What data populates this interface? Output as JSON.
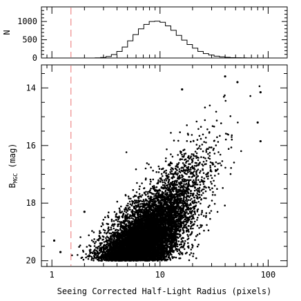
{
  "colors": {
    "cut_line": "#e88888",
    "points": "#000000",
    "frame": "#000000"
  },
  "chart_data": [
    {
      "id": "histogram",
      "type": "bar",
      "title": "",
      "xlabel": "",
      "ylabel": "N",
      "xscale": "log",
      "xlim": [
        0.8,
        150
      ],
      "ylim": [
        0,
        1400
      ],
      "yticks": [
        0,
        500,
        1000
      ],
      "ytick_labels": [
        "0",
        "500",
        "1000"
      ],
      "bin_width_log10": 0.05,
      "bin_start_log10": 0.0,
      "counts": [
        0,
        0,
        0,
        0,
        0,
        0,
        0,
        0,
        4,
        14,
        40,
        95,
        180,
        300,
        470,
        640,
        800,
        920,
        1000,
        1010,
        980,
        880,
        760,
        620,
        490,
        370,
        270,
        180,
        120,
        80,
        50,
        30,
        18,
        10,
        6,
        4,
        2,
        1,
        0,
        0,
        0,
        0
      ],
      "vline_x": 1.5
    },
    {
      "id": "scatter",
      "type": "scatter",
      "title": "",
      "xlabel": "Seeing Corrected Half-Light Radius (pixels)",
      "ylabel_main": "B",
      "ylabel_sub": "MGC",
      "ylabel_unit": "(mag)",
      "xscale": "log",
      "xlim": [
        0.8,
        150
      ],
      "ylim": [
        20.2,
        13.2
      ],
      "xticks": [
        1,
        10,
        100
      ],
      "xtick_labels": [
        "1",
        "10",
        "100"
      ],
      "yticks": [
        14,
        16,
        18,
        20
      ],
      "ytick_labels": [
        "14",
        "16",
        "18",
        "20"
      ],
      "vline_x": 1.5,
      "magnitude_limit": 20,
      "n_points": 9000,
      "notable_points": [
        {
          "x": 40,
          "y": 13.6
        },
        {
          "x": 52,
          "y": 13.8
        },
        {
          "x": 16,
          "y": 14.05
        },
        {
          "x": 85,
          "y": 14.15
        },
        {
          "x": 80,
          "y": 15.2
        },
        {
          "x": 85,
          "y": 15.85
        },
        {
          "x": 2.0,
          "y": 18.3
        },
        {
          "x": 1.05,
          "y": 19.3
        },
        {
          "x": 1.2,
          "y": 19.7
        }
      ]
    }
  ]
}
